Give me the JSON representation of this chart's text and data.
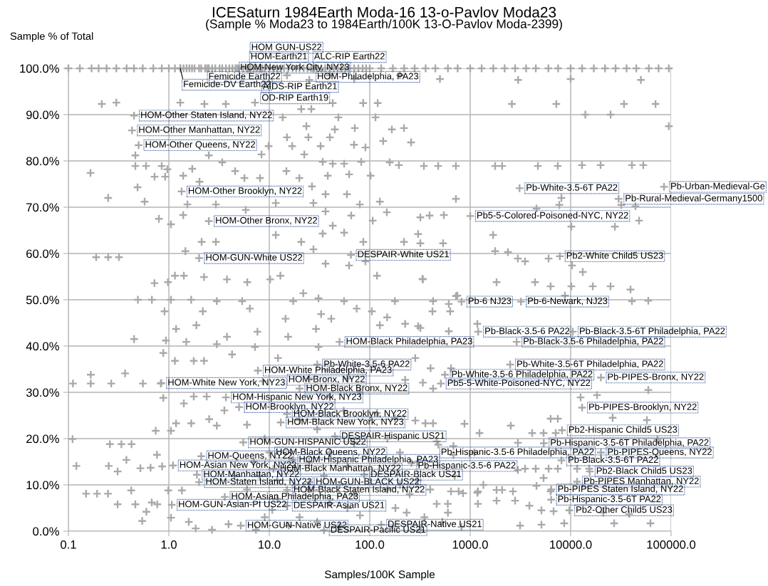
{
  "chart_data": {
    "type": "scatter",
    "title": "ICESaturn 1984Earth Moda-16 13-o-Pavlov Moda23",
    "subtitle": "(Sample % Moda23 to 1984Earth/100K 13-O-Pavlov Moda-2399)",
    "xlabel": "Samples/100K Sample",
    "ylabel": "Sample % of Total",
    "log": "x",
    "grid": true,
    "marker": "cross",
    "color": "#a9a9a9",
    "xlim": [
      0.1,
      100000
    ],
    "ylim": [
      0,
      100
    ],
    "xticks": [
      {
        "value": 0.1,
        "label": "0.1"
      },
      {
        "value": 1,
        "label": "1.0"
      },
      {
        "value": 10,
        "label": "10.0"
      },
      {
        "value": 100,
        "label": "100.0"
      },
      {
        "value": 1000,
        "label": "1000.0"
      },
      {
        "value": 10000,
        "label": "10000.0"
      },
      {
        "value": 100000,
        "label": "100000.0"
      }
    ],
    "yticks": [
      {
        "value": 0,
        "label": "0.0%"
      },
      {
        "value": 10,
        "label": "10.0%"
      },
      {
        "value": 20,
        "label": "20.0%"
      },
      {
        "value": 30,
        "label": "30.0%"
      },
      {
        "value": 40,
        "label": "40.0%"
      },
      {
        "value": 50,
        "label": "50.0%"
      },
      {
        "value": 60,
        "label": "60.0%"
      },
      {
        "value": 70,
        "label": "70.0%"
      },
      {
        "value": 80,
        "label": "80.0%"
      },
      {
        "value": 90,
        "label": "90.0%"
      },
      {
        "value": 100,
        "label": "100.0%"
      }
    ],
    "x": [
      6.3,
      6.1,
      27,
      4.8,
      2.4,
      28,
      1.3,
      8.2,
      8.0,
      0.45,
      0.43,
      0.5,
      1.34,
      2.5,
      2.0,
      65,
      3100,
      85000,
      30000,
      1000,
      7800,
      820,
      3200,
      1200,
      10500,
      2900,
      50,
      30,
      7.7,
      0.84,
      8.6,
      20,
      3.7,
      5.0,
      15,
      13,
      45,
      5.5,
      10,
      2.1,
      17,
      260,
      1.1,
      11,
      1.9,
      88,
      2.0,
      25,
      15,
      3.6,
      1.07,
      15,
      5.2,
      130,
      35,
      2500,
      560,
      20000,
      510,
      13000,
      8200,
      5400,
      1100,
      20000,
      8100,
      15500,
      11600,
      6400,
      6400,
      9700,
      0.215,
      0.3,
      1.3,
      2.26,
      3.69,
      7.2,
      20.8,
      26.2,
      42.8,
      86,
      120,
      13.6,
      48.7,
      114,
      23.4,
      44.9,
      71,
      166,
      219,
      15,
      24.5,
      40.1,
      136,
      258,
      9.84,
      16.9,
      32.4,
      69.8,
      90.6,
      0.464,
      2.5,
      8.36,
      22.3,
      34,
      42.8,
      55.6,
      82.2,
      158,
      195,
      0.464,
      0.593,
      0.849,
      0.968,
      1.71,
      3.4,
      4.57,
      14.8,
      0.166,
      0.721,
      0.92,
      1.39,
      2.02,
      5.65,
      8.09,
      19.9,
      38.2,
      62.3,
      102,
      126,
      36.3,
      59.3,
      26.6,
      0.249,
      0.574,
      0.488,
      1.53,
      2.94,
      5.83,
      11.6,
      27.5,
      79.6,
      148,
      36.3,
      65.4,
      0.796,
      1.05,
      1.39,
      42.8,
      107,
      11.6,
      20.8,
      34,
      55.6,
      86.3,
      219,
      2.12,
      2.94,
      0.189,
      0.249,
      0.319,
      1.46,
      36.3,
      62.3,
      90.6,
      27.5,
      346,
      480,
      721,
      1770,
      2080,
      4720,
      7450,
      12970,
      19860,
      40740,
      52840,
      721,
      8090,
      7710,
      4570,
      31900,
      44150,
      47970,
      27540,
      10160,
      319,
      394,
      547,
      303,
      537,
      1690,
      319,
      1770,
      2375,
      2985,
      3515,
      6030,
      10330,
      13200,
      335,
      1830,
      4420,
      6320,
      10160,
      16600,
      24950,
      39450,
      40740,
      59290,
      8770,
      745,
      612,
      421,
      632,
      303,
      612,
      1178,
      59290,
      12560,
      18280,
      26190,
      57400,
      6320,
      7450,
      4140,
      5375,
      7100,
      2535,
      877,
      1237,
      73300,
      2985,
      464,
      2985,
      3515,
      4490,
      6030,
      7450,
      11590,
      15290,
      5375,
      4570,
      6320,
      1830,
      1178,
      849,
      644,
      2080,
      2665,
      1830,
      2800,
      3880,
      5120,
      6760,
      21180,
      38200,
      62250,
      27100,
      8630,
      5120,
      3135,
      0.719,
      0.979,
      1.15,
      1.41,
      2.24,
      3.79,
      6.04,
      10.2,
      12.9,
      21.8,
      30.9,
      41.4,
      74.1,
      118,
      338,
      721,
      0.492,
      0.678,
      1.05,
      1.67,
      3.0,
      5.37,
      17.3,
      55.5,
      178,
      427,
      0.906,
      2.18,
      6.4,
      14.5,
      32.8,
      105,
      149,
      1.18,
      1.88,
      3.79,
      7.62,
      15.4,
      29.2,
      126,
      225,
      319,
      0.451,
      0.935,
      1.49,
      3.0,
      7.2,
      30.9,
      0.88,
      1.15,
      1.77,
      2.24,
      4.26,
      12.2,
      284,
      403,
      644,
      0.167,
      0.367,
      0.111,
      0.167,
      0.267,
      0.552,
      0.832,
      225,
      338,
      427,
      0.88,
      1.41,
      1.77,
      2.38,
      3.57,
      118,
      178,
      284,
      358,
      427,
      1.18,
      1.67,
      2.52,
      3.0,
      0.74,
      1.05,
      0.11,
      0.259,
      0.337,
      0.425,
      0.762,
      0.378,
      0.12,
      0.252,
      0.309,
      0.521,
      0.658,
      0.857,
      681,
      480,
      681,
      0.15,
      0.193,
      0.248,
      0.309,
      0.464,
      0.597,
      0.543,
      0.422,
      0.676,
      0.767,
      0.987,
      1.05,
      1.35,
      1.58,
      1.85,
      2.69,
      3.93,
      7.36,
      10.7,
      15.6,
      80,
      233,
      464,
      598,
      1194,
      767,
      1194,
      528,
      818,
      1353,
      319,
      8,
      12,
      18,
      25,
      35,
      50,
      70,
      40,
      60,
      20,
      30,
      50,
      12,
      9,
      6,
      4.5,
      7,
      25,
      40,
      60,
      70,
      30,
      20,
      55,
      40,
      25,
      60,
      80,
      9,
      6,
      150,
      200,
      250,
      300,
      400,
      180,
      350,
      600,
      700,
      150,
      200,
      300,
      0.1,
      0.13,
      0.17,
      0.2,
      0.24,
      0.3,
      0.38,
      0.45,
      0.55,
      0.7,
      0.85,
      1.0,
      1.15,
      1.3,
      1.5,
      1.7,
      2,
      2.3,
      2.7,
      3.2,
      3.7,
      4.3,
      5,
      6,
      7,
      8.5,
      10,
      12,
      14,
      17,
      20,
      24,
      28,
      33,
      40,
      48,
      57,
      70,
      85,
      100,
      130,
      170,
      220,
      280,
      360,
      450,
      600,
      750,
      1000,
      1300,
      1700,
      2200,
      2800,
      3600,
      4500,
      6000,
      7500,
      10000,
      13000,
      17000,
      22000,
      28000,
      36000,
      45000,
      60000,
      75000,
      95000,
      1.4,
      1.6,
      1.8,
      2.1,
      2.5,
      2.9,
      3.4,
      4,
      4.6,
      5.5,
      6.5,
      7.5,
      9,
      11,
      13,
      15.5,
      18.5,
      22,
      26,
      30,
      36,
      44,
      52,
      62,
      77,
      92,
      15,
      40,
      70,
      25,
      200,
      500,
      3000,
      10000,
      50000,
      2600,
      7200,
      34000,
      70000,
      95000,
      14000,
      25000
    ],
    "values": [
      100,
      100,
      100,
      100,
      100,
      100,
      100,
      100,
      100,
      89.8,
      86.6,
      83.4,
      73.4,
      67.0,
      59.0,
      59.7,
      74.1,
      74.4,
      71.8,
      68.1,
      59.4,
      49.6,
      49.6,
      43.1,
      43.1,
      40.9,
      40.9,
      36.0,
      34.7,
      32.0,
      32.4,
      30.8,
      28.9,
      26.8,
      25.3,
      23.5,
      20.5,
      19.2,
      17.0,
      16.2,
      15.4,
      14.7,
      14.2,
      13.5,
      12.2,
      12.2,
      10.6,
      10.6,
      8.9,
      7.4,
      5.7,
      5.5,
      1.2,
      1.4,
      0.2,
      36.0,
      33.8,
      33.2,
      31.9,
      26.7,
      21.8,
      19.0,
      17.0,
      17.0,
      15.3,
      12.9,
      10.7,
      9.0,
      6.8,
      4.5,
      92.3,
      92.6,
      92.6,
      92.3,
      92.3,
      92.6,
      91.2,
      91.2,
      92.5,
      92.5,
      92.5,
      89.4,
      89.4,
      89.4,
      87.5,
      86.8,
      87.1,
      86.8,
      87.1,
      85.1,
      85.1,
      85.1,
      84.3,
      84.0,
      83.2,
      83.2,
      83.2,
      83.5,
      82.9,
      81.2,
      81.2,
      81.4,
      81.4,
      79.8,
      79.4,
      79.4,
      79.8,
      79.7,
      79.1,
      78.9,
      78.9,
      78.9,
      78.2,
      78.3,
      79.7,
      77.8,
      77.8,
      77.4,
      76.6,
      76.6,
      76.8,
      75.5,
      76.3,
      76.3,
      76.3,
      76.8,
      77.1,
      76.8,
      71.2,
      72.8,
      72.8,
      74.5,
      72.0,
      71.2,
      74.3,
      70.6,
      70.6,
      69.4,
      70.9,
      70.9,
      70.6,
      68.9,
      69.1,
      68.2,
      67.5,
      66.3,
      68.3,
      66.0,
      67.1,
      64.0,
      62.5,
      64.3,
      64.5,
      62.5,
      62.5,
      62.5,
      62.5,
      59.2,
      59.2,
      59.2,
      60.5,
      57.8,
      57.4,
      58.3,
      60.9,
      78.9,
      78.9,
      78.9,
      78.9,
      78.9,
      78.9,
      78.9,
      79.1,
      79.1,
      79.1,
      79.1,
      71.8,
      72.0,
      70.5,
      69.7,
      70.5,
      70.2,
      67.1,
      65.8,
      65.8,
      67.8,
      68.2,
      68.3,
      64.2,
      62.2,
      64.0,
      62.2,
      60.5,
      60.3,
      58.9,
      58.3,
      58.9,
      57.4,
      56.0,
      54.5,
      53.8,
      53.8,
      52.9,
      52.9,
      52.9,
      52.9,
      52.2,
      49.7,
      49.8,
      50.9,
      50.9,
      49.1,
      47.5,
      47.5,
      44.3,
      43.2,
      44.8,
      30.5,
      28.9,
      29.4,
      24.5,
      24.0,
      24.3,
      24.3,
      21.2,
      21.2,
      21.2,
      22.8,
      23.2,
      21.2,
      19.8,
      19.1,
      19.4,
      13.2,
      13.5,
      13.5,
      13.5,
      13.5,
      13.5,
      13.5,
      11.5,
      9.8,
      8.6,
      8.9,
      8.3,
      8.2,
      8.6,
      8.9,
      8.6,
      6.6,
      6.6,
      5.5,
      4.5,
      4.3,
      4.0,
      3.7,
      1.7,
      1.7,
      1.7,
      1.4,
      1.2,
      53.6,
      53.8,
      55.2,
      55.2,
      54.9,
      54.4,
      53.8,
      54.4,
      55.2,
      51.4,
      50.3,
      45.9,
      48.1,
      55.2,
      54.4,
      50.8,
      50.0,
      50.0,
      50.0,
      50.0,
      49.7,
      49.7,
      49.7,
      49.7,
      49.7,
      49.7,
      47.5,
      47.5,
      48.1,
      45.9,
      46.9,
      47.5,
      46.2,
      43.7,
      44.5,
      42.0,
      43.1,
      42.0,
      43.7,
      44.5,
      44.8,
      43.9,
      41.5,
      41.2,
      40.9,
      40.4,
      39.8,
      39.8,
      38.5,
      36.8,
      36.8,
      36.8,
      38.2,
      37.4,
      37.4,
      35.2,
      35.2,
      33.8,
      34.1,
      31.9,
      31.9,
      31.9,
      31.9,
      31.9,
      32.7,
      32.1,
      30.8,
      28.8,
      27.6,
      29.1,
      29.1,
      26.1,
      25.5,
      24.4,
      23.9,
      23.3,
      23.3,
      23.3,
      23.3,
      24.2,
      22.8,
      21.7,
      21.7,
      19.9,
      18.8,
      18.8,
      18.8,
      16.5,
      15.4,
      14.1,
      14.1,
      12.9,
      13.6,
      13.7,
      14.0,
      16.5,
      18.7,
      18.4,
      8.1,
      8.1,
      8.1,
      5.8,
      5.8,
      4.2,
      2.2,
      8.8,
      6.2,
      5.8,
      8.8,
      2.9,
      8.8,
      2.0,
      0.6,
      0.3,
      1.5,
      0.3,
      4.6,
      1.2,
      3.4,
      4.0,
      5.9,
      5.9,
      5.9,
      8.6,
      8.6,
      2.0,
      0.9,
      10.0,
      0.3,
      12,
      11,
      10,
      9,
      12,
      10,
      8,
      6,
      5,
      3,
      2,
      1,
      7,
      3,
      9,
      12,
      15,
      15,
      17,
      14,
      19,
      22,
      24,
      26,
      29,
      33,
      33,
      30,
      20,
      23,
      9,
      10,
      8,
      11,
      9,
      5,
      3,
      4,
      12,
      20,
      17,
      15,
      100,
      100,
      100,
      100,
      100,
      100,
      100,
      100,
      100,
      100,
      100,
      100,
      100,
      100,
      100,
      100,
      100,
      100,
      100,
      100,
      100,
      100,
      100,
      100,
      100,
      100,
      100,
      100,
      100,
      100,
      100,
      100,
      100,
      100,
      100,
      100,
      100,
      100,
      100,
      100,
      100,
      100,
      100,
      100,
      100,
      100,
      100,
      100,
      100,
      100,
      100,
      100,
      100,
      100,
      100,
      100,
      100,
      100,
      100,
      100,
      100,
      100,
      100,
      100,
      100,
      100,
      100,
      100,
      100,
      100,
      100,
      100,
      100,
      100,
      100,
      100,
      100,
      100,
      100,
      100,
      100,
      100,
      100,
      100,
      100,
      100,
      100,
      100,
      100,
      100,
      100,
      100,
      100,
      98.5,
      98.5,
      97.7,
      97.5,
      98.5,
      97.7,
      97.5,
      97.7,
      97.5,
      92.3,
      92.3,
      92.3,
      92.3,
      87.5,
      90,
      90
    ],
    "annotations": [
      {
        "text": "HOM GUN-US22",
        "x": 6.3,
        "y": 100
      },
      {
        "text": "HOM-Earth21",
        "x": 6.1,
        "y": 100
      },
      {
        "text": "ALC-RIP Earth22",
        "x": 27,
        "y": 100
      },
      {
        "text": "HOM-New York City, NY23",
        "x": 4.8,
        "y": 100
      },
      {
        "text": "Femicide Earth22",
        "x": 2.4,
        "y": 100
      },
      {
        "text": "HOM-Philadelphia, PA23",
        "x": 28,
        "y": 100
      },
      {
        "text": "Femicide-DV Earth22",
        "x": 1.3,
        "y": 100
      },
      {
        "text": "AIDS-RIP Earth21",
        "x": 8.2,
        "y": 100
      },
      {
        "text": "OD-RIP Earth19",
        "x": 8.0,
        "y": 100
      },
      {
        "text": "HOM-Other Staten Island, NY22",
        "x": 0.45,
        "y": 89.8
      },
      {
        "text": "HOM-Other Manhattan, NY22",
        "x": 0.43,
        "y": 86.6
      },
      {
        "text": "HOM-Other Queens, NY22",
        "x": 0.5,
        "y": 83.4
      },
      {
        "text": "HOM-Other Brooklyn, NY22",
        "x": 1.34,
        "y": 73.4
      },
      {
        "text": "HOM-Other Bronx, NY22",
        "x": 2.5,
        "y": 67.0
      },
      {
        "text": "HOM-GUN-White US22",
        "x": 2.0,
        "y": 59.0
      },
      {
        "text": "DESPAIR-White US21",
        "x": 65,
        "y": 59.7
      },
      {
        "text": "Pb-White-3.5-6T PA22",
        "x": 3100,
        "y": 74.1
      },
      {
        "text": "Pb-Urban-Medieval-Ge",
        "x": 85000,
        "y": 74.4
      },
      {
        "text": "Pb-Rural-Medieval-Germany1500",
        "x": 30000,
        "y": 71.8
      },
      {
        "text": "Pb5-5-Colored-Poisoned-NYC, NY22",
        "x": 1000,
        "y": 68.1
      },
      {
        "text": "Pb2-White Child5 US23",
        "x": 7800,
        "y": 59.4
      },
      {
        "text": "Pb-6 NJ23",
        "x": 820,
        "y": 49.6
      },
      {
        "text": "Pb-6-Newark, NJ23",
        "x": 3200,
        "y": 49.6
      },
      {
        "text": "Pb-Black-3.5-6 PA22",
        "x": 1200,
        "y": 43.1
      },
      {
        "text": "Pb-Black-3.5-6T Philadelphia, PA22",
        "x": 10500,
        "y": 43.1
      },
      {
        "text": "Pb-Black-3.5-6 Philadelphia, PA22",
        "x": 2900,
        "y": 40.9
      },
      {
        "text": "HOM-Black Philadelphia, PA23",
        "x": 50,
        "y": 40.9
      },
      {
        "text": "Pb-White-3.5-6 PA22",
        "x": 30,
        "y": 36.0
      },
      {
        "text": "HOM-White Philadelphia, PA23",
        "x": 7.7,
        "y": 34.7
      },
      {
        "text": "HOM-White New York, NY23",
        "x": 0.84,
        "y": 32.0
      },
      {
        "text": "HOM-Bronx, NY22",
        "x": 8.6,
        "y": 32.4
      },
      {
        "text": "HOM-Black Bronx, NY22",
        "x": 20,
        "y": 30.8
      },
      {
        "text": "HOM-Hispanic New York, NY23",
        "x": 3.7,
        "y": 28.9
      },
      {
        "text": "HOM-Brooklyn, NY22",
        "x": 5.0,
        "y": 26.8
      },
      {
        "text": "HOM-Black Brooklyn, NY22",
        "x": 15,
        "y": 25.3
      },
      {
        "text": "HOM-Black New York, NY23",
        "x": 13,
        "y": 23.5
      },
      {
        "text": "DESPAIR-Hispanic US21",
        "x": 45,
        "y": 20.5
      },
      {
        "text": "HOM-GUN-HISPANIC US22",
        "x": 5.5,
        "y": 19.2
      },
      {
        "text": "HOM-Black Queens, NY22",
        "x": 10,
        "y": 17.0
      },
      {
        "text": "HOM-Queens, NY22",
        "x": 2.1,
        "y": 16.2
      },
      {
        "text": "HOM-Hispanic Philadelphia, PA23",
        "x": 17,
        "y": 15.4
      },
      {
        "text": "Pb-Hispanic-3.5-6 PA22",
        "x": 260,
        "y": 14.7
      },
      {
        "text": "HOM-Asian New York, NY22",
        "x": 1.1,
        "y": 14.2
      },
      {
        "text": "HOM-Black Manhattan, NY22",
        "x": 11,
        "y": 13.5
      },
      {
        "text": "HOM-Manhattan, NY22",
        "x": 1.9,
        "y": 12.2
      },
      {
        "text": "DESPAIR-Black US21",
        "x": 88,
        "y": 12.2
      },
      {
        "text": "HOM-Staten Island, NY22",
        "x": 2.0,
        "y": 10.6
      },
      {
        "text": "HOM-GUN-BLACK US22",
        "x": 25,
        "y": 10.6
      },
      {
        "text": "HOM-Black Staten Island, NY22",
        "x": 15,
        "y": 8.9
      },
      {
        "text": "HOM-Asian Philadelphia, PA23",
        "x": 3.6,
        "y": 7.4
      },
      {
        "text": "HOM-GUN-Asian-PI US22",
        "x": 1.07,
        "y": 5.7
      },
      {
        "text": "DESPAIR-Asian US21",
        "x": 15,
        "y": 5.5
      },
      {
        "text": "HOM-GUN-Native US22",
        "x": 5.2,
        "y": 1.2
      },
      {
        "text": "DESPAIR-Native US21",
        "x": 130,
        "y": 1.4
      },
      {
        "text": "DESPAIR-Pacific US21",
        "x": 35,
        "y": 0.2
      },
      {
        "text": "Pb-White-3.5-6T Philadelphia, PA22",
        "x": 2500,
        "y": 36.0
      },
      {
        "text": "Pb-White-3.5-6 Philadelphia, PA22",
        "x": 560,
        "y": 33.8
      },
      {
        "text": "Pb-PIPES-Bronx, NY22",
        "x": 20000,
        "y": 33.2
      },
      {
        "text": "Pb5-5-White-Poisoned-NYC, NY22",
        "x": 510,
        "y": 31.9
      },
      {
        "text": "Pb-PIPES-Brooklyn, NY22",
        "x": 13000,
        "y": 26.7
      },
      {
        "text": "Pb2-Hispanic Child5 US23",
        "x": 8200,
        "y": 21.8
      },
      {
        "text": "Pb-Hispanic-3.5-6T Philadelphia, PA22",
        "x": 5400,
        "y": 19.0
      },
      {
        "text": "Pb-Hispanic-3.5-6 Philadelphia, PA22",
        "x": 1100,
        "y": 17.0
      },
      {
        "text": "Pb-PIPES-Queens, NY22",
        "x": 20000,
        "y": 17.0
      },
      {
        "text": "Pb-Black-3.5-6T PA22",
        "x": 8100,
        "y": 15.3
      },
      {
        "text": "Pb2-Black Child5 US23",
        "x": 15500,
        "y": 12.9
      },
      {
        "text": "Pb-PIPES Manhattan, NY22",
        "x": 11600,
        "y": 10.7
      },
      {
        "text": "Pb-PIPES Staten Island, NY22",
        "x": 6400,
        "y": 9.0
      },
      {
        "text": "Pb-Hispanic-3.5-6T PA22",
        "x": 6400,
        "y": 6.8
      },
      {
        "text": "Pb2-Other Child5 US23",
        "x": 9700,
        "y": 4.5
      }
    ]
  }
}
